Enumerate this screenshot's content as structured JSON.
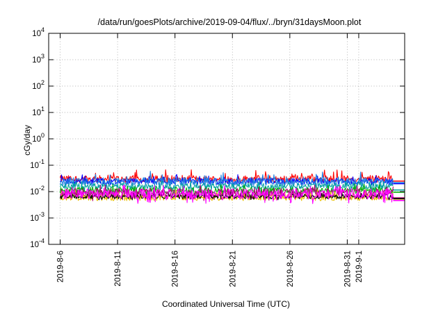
{
  "chart_data": {
    "type": "line",
    "title": "/data/run/goesPlots/archive/2019-09-04/flux/../bryn/31daysMoon.plot",
    "xlabel": "Coordinated Universal Time (UTC)",
    "ylabel": "cGy/day",
    "y_scale": "log",
    "ylim": [
      0.0001,
      10000
    ],
    "y_ticks": [
      {
        "base": "10",
        "exp": "-4",
        "value": 0.0001
      },
      {
        "base": "10",
        "exp": "-3",
        "value": 0.001
      },
      {
        "base": "10",
        "exp": "-2",
        "value": 0.01
      },
      {
        "base": "10",
        "exp": "-1",
        "value": 0.1
      },
      {
        "base": "10",
        "exp": "0",
        "value": 1
      },
      {
        "base": "10",
        "exp": "1",
        "value": 10
      },
      {
        "base": "10",
        "exp": "2",
        "value": 100
      },
      {
        "base": "10",
        "exp": "3",
        "value": 1000
      },
      {
        "base": "10",
        "exp": "4",
        "value": 10000
      }
    ],
    "xlim": [
      "2019-08-05",
      "2019-09-05"
    ],
    "x_ticks": [
      "2019-8-6",
      "2019-8-11",
      "2019-8-16",
      "2019-8-21",
      "2019-8-26",
      "2019-8-31",
      "2019-9-1"
    ],
    "x_tick_dates": [
      "2019-08-06",
      "2019-08-11",
      "2019-08-16",
      "2019-08-21",
      "2019-08-26",
      "2019-08-31",
      "2019-09-01"
    ],
    "data_range": [
      "2019-08-06",
      "2019-09-04"
    ],
    "grid": true,
    "series": [
      {
        "color": "#ff0000",
        "typical": 0.03,
        "low": 0.022,
        "high": 0.07,
        "last": 0.025
      },
      {
        "color": "#0000ff",
        "typical": 0.025,
        "low": 0.018,
        "high": 0.045,
        "last": 0.02
      },
      {
        "color": "#2080e0",
        "typical": 0.024,
        "low": 0.016,
        "high": 0.06,
        "last": 0.022
      },
      {
        "color": "#00a0a0",
        "typical": 0.016,
        "low": 0.01,
        "high": 0.025,
        "last": 0.0115
      },
      {
        "color": "#00b000",
        "typical": 0.011,
        "low": 0.007,
        "high": 0.02,
        "last": 0.0095
      },
      {
        "color": "#b00070",
        "typical": 0.009,
        "low": 0.0045,
        "high": 0.018,
        "last": 0.0058
      },
      {
        "color": "#e8c000",
        "typical": 0.006,
        "low": 0.0045,
        "high": 0.012,
        "last": 0.0052
      },
      {
        "color": "#000000",
        "typical": 0.0065,
        "low": 0.0048,
        "high": 0.01,
        "last": 0.0054
      },
      {
        "color": "#ff00ff",
        "typical": 0.008,
        "low": 0.0035,
        "high": 0.018,
        "last": 0.0046
      }
    ]
  }
}
